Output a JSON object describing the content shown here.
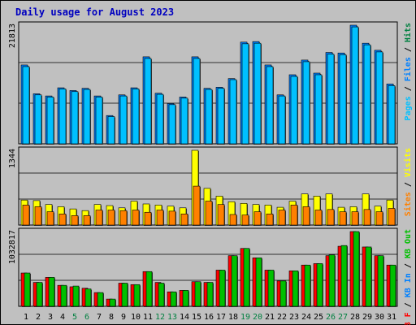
{
  "title": "Daily usage for August 2023",
  "colors": {
    "pages": "#00c0ff",
    "files": "#0080ff",
    "hits": "#008040",
    "visits": "#ffff00",
    "sites": "#ff8000",
    "kb_in": "#00c000",
    "kb_out": "#ff0000",
    "weekend_day": "#008040",
    "weekday": "#000000",
    "title": "#0000c0"
  },
  "chart_data": [
    {
      "type": "bar",
      "name": "pages-files-hits",
      "ymax_label": "21813",
      "ylim": [
        0,
        21813
      ],
      "legend": [
        {
          "text": "Pages",
          "color": "#00c0ff"
        },
        {
          "text": " / ",
          "color": "#000000"
        },
        {
          "text": "Files",
          "color": "#0080ff"
        },
        {
          "text": " / ",
          "color": "#000000"
        },
        {
          "text": "Hits",
          "color": "#008040"
        }
      ],
      "categories": [
        "1",
        "2",
        "3",
        "4",
        "5",
        "6",
        "7",
        "8",
        "9",
        "10",
        "11",
        "12",
        "13",
        "14",
        "15",
        "16",
        "17",
        "18",
        "19",
        "20",
        "21",
        "22",
        "23",
        "24",
        "25",
        "26",
        "27",
        "28",
        "29",
        "30",
        "31"
      ],
      "series": [
        {
          "name": "Hits",
          "values": [
            14500,
            9200,
            8800,
            10300,
            9800,
            10200,
            8800,
            5200,
            9000,
            10300,
            16000,
            9300,
            7400,
            8600,
            16000,
            10200,
            10400,
            12000,
            18700,
            18800,
            14500,
            9000,
            12700,
            15400,
            13000,
            16800,
            16700,
            21813,
            18500,
            17200,
            11000
          ]
        },
        {
          "name": "Files",
          "values": [
            14500,
            9200,
            8800,
            10300,
            9800,
            10200,
            8800,
            5200,
            9000,
            10300,
            16000,
            9300,
            7400,
            8600,
            16000,
            10200,
            10400,
            12000,
            18700,
            18800,
            14500,
            9000,
            12700,
            15400,
            13000,
            16800,
            16700,
            21813,
            18500,
            17200,
            11000
          ]
        },
        {
          "name": "Pages",
          "values": [
            14200,
            9000,
            8600,
            10100,
            9600,
            10000,
            8600,
            5000,
            8800,
            10100,
            15700,
            9100,
            7200,
            8400,
            15700,
            10000,
            10200,
            11800,
            18400,
            18500,
            14200,
            8800,
            12400,
            15100,
            12700,
            16500,
            16400,
            21500,
            18200,
            16900,
            10700
          ]
        }
      ]
    },
    {
      "type": "bar",
      "name": "visits-sites",
      "ymax_label": "1344",
      "ylim": [
        0,
        1344
      ],
      "legend": [
        {
          "text": "Sites",
          "color": "#ff8000"
        },
        {
          "text": " / ",
          "color": "#000000"
        },
        {
          "text": "Visits",
          "color": "#ffff00"
        }
      ],
      "categories": [
        "1",
        "2",
        "3",
        "4",
        "5",
        "6",
        "7",
        "8",
        "9",
        "10",
        "11",
        "12",
        "13",
        "14",
        "15",
        "16",
        "17",
        "18",
        "19",
        "20",
        "21",
        "22",
        "23",
        "24",
        "25",
        "26",
        "27",
        "28",
        "29",
        "30",
        "31"
      ],
      "series": [
        {
          "name": "Visits",
          "values": [
            450,
            440,
            370,
            330,
            290,
            260,
            370,
            350,
            310,
            430,
            380,
            360,
            340,
            310,
            1344,
            660,
            520,
            420,
            390,
            370,
            360,
            320,
            430,
            560,
            520,
            560,
            320,
            330,
            560,
            340,
            450
          ]
        },
        {
          "name": "Sites",
          "values": [
            360,
            330,
            240,
            200,
            170,
            170,
            270,
            270,
            260,
            270,
            230,
            270,
            250,
            200,
            700,
            430,
            370,
            190,
            180,
            240,
            200,
            270,
            360,
            330,
            270,
            280,
            240,
            240,
            280,
            240,
            300
          ]
        }
      ]
    },
    {
      "type": "bar",
      "name": "kb-in-out",
      "ymax_label": "1032817",
      "ylim": [
        0,
        1032817
      ],
      "legend": [
        {
          "text": "KB F",
          "color": "#ff0000"
        },
        {
          "text": " / ",
          "color": "#000000"
        },
        {
          "text": "KB In",
          "color": "#0080ff"
        },
        {
          "text": " / ",
          "color": "#000000"
        },
        {
          "text": "KB Out",
          "color": "#00c000"
        }
      ],
      "categories": [
        "1",
        "2",
        "3",
        "4",
        "5",
        "6",
        "7",
        "8",
        "9",
        "10",
        "11",
        "12",
        "13",
        "14",
        "15",
        "16",
        "17",
        "18",
        "19",
        "20",
        "21",
        "22",
        "23",
        "24",
        "25",
        "26",
        "27",
        "28",
        "29",
        "30",
        "31"
      ],
      "series": [
        {
          "name": "KB F",
          "values": [
            460000,
            330000,
            400000,
            290000,
            270000,
            250000,
            190000,
            100000,
            320000,
            300000,
            480000,
            330000,
            200000,
            220000,
            340000,
            330000,
            500000,
            700000,
            800000,
            670000,
            500000,
            350000,
            490000,
            570000,
            590000,
            700000,
            830000,
            1032817,
            820000,
            700000,
            570000
          ]
        },
        {
          "name": "KB Out",
          "values": [
            460000,
            330000,
            400000,
            290000,
            280000,
            240000,
            190000,
            100000,
            320000,
            300000,
            480000,
            320000,
            200000,
            220000,
            340000,
            330000,
            500000,
            700000,
            800000,
            670000,
            500000,
            350000,
            490000,
            570000,
            590000,
            710000,
            840000,
            1032817,
            820000,
            700000,
            570000
          ]
        }
      ]
    }
  ]
}
